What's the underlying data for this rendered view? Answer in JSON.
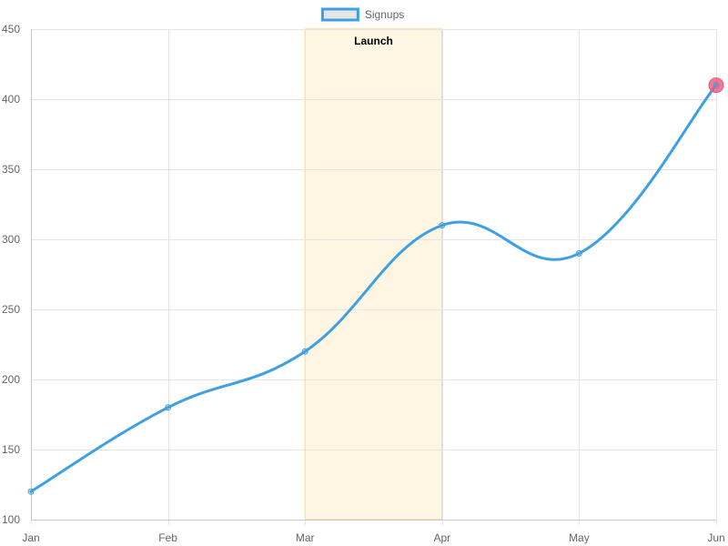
{
  "chart_data": {
    "type": "line",
    "categories": [
      "Jan",
      "Feb",
      "Mar",
      "Apr",
      "May",
      "Jun"
    ],
    "series": [
      {
        "name": "Signups",
        "values": [
          120,
          180,
          220,
          310,
          290,
          410
        ],
        "color": "#3ea0e4"
      }
    ],
    "ylim": [
      100,
      450
    ],
    "yticks": [
      100,
      150,
      200,
      250,
      300,
      350,
      400,
      450
    ],
    "grid": true,
    "legend_position": "top",
    "annotations": [
      {
        "type": "box",
        "x_from": "Mar",
        "x_to": "Apr",
        "label": "Launch",
        "fill_color": "#fef6e3",
        "border_color": "#f5cf6b"
      },
      {
        "type": "point",
        "x": "Jun",
        "y": 410,
        "color": "#f2557a"
      }
    ],
    "colors": {
      "grid": "#e5e5e5",
      "axis": "#c8c8c8",
      "legend_box_fill": "#e6e6e6"
    }
  }
}
